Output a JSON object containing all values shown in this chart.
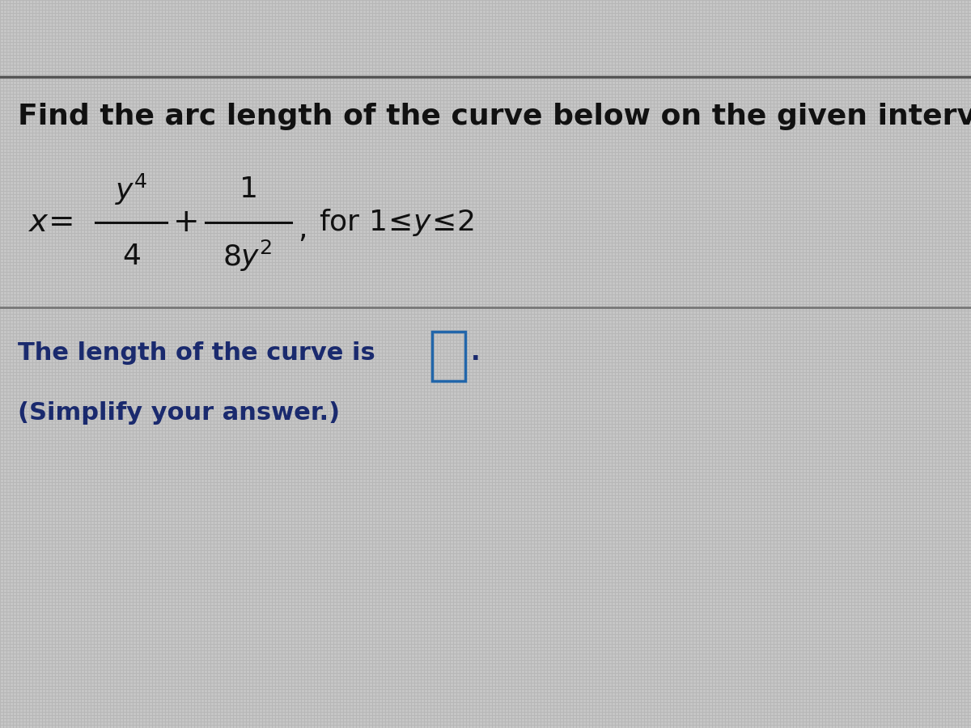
{
  "background_color": "#c8c8c8",
  "grid_color1": "#b8b8b8",
  "grid_color2": "#d8d8d8",
  "title_text": "Find the arc length of the curve below on the given interval.",
  "title_fontsize": 26,
  "title_color": "#111111",
  "formula_color": "#111111",
  "answer_line1": "The length of the curve is",
  "answer_line2": "(Simplify your answer.)",
  "answer_fontsize": 22,
  "answer_color": "#1a2a6e",
  "simplify_color": "#1a2a6e",
  "line_color": "#777777",
  "box_color": "#2266aa",
  "fig_width": 12.0,
  "fig_height": 9.0
}
